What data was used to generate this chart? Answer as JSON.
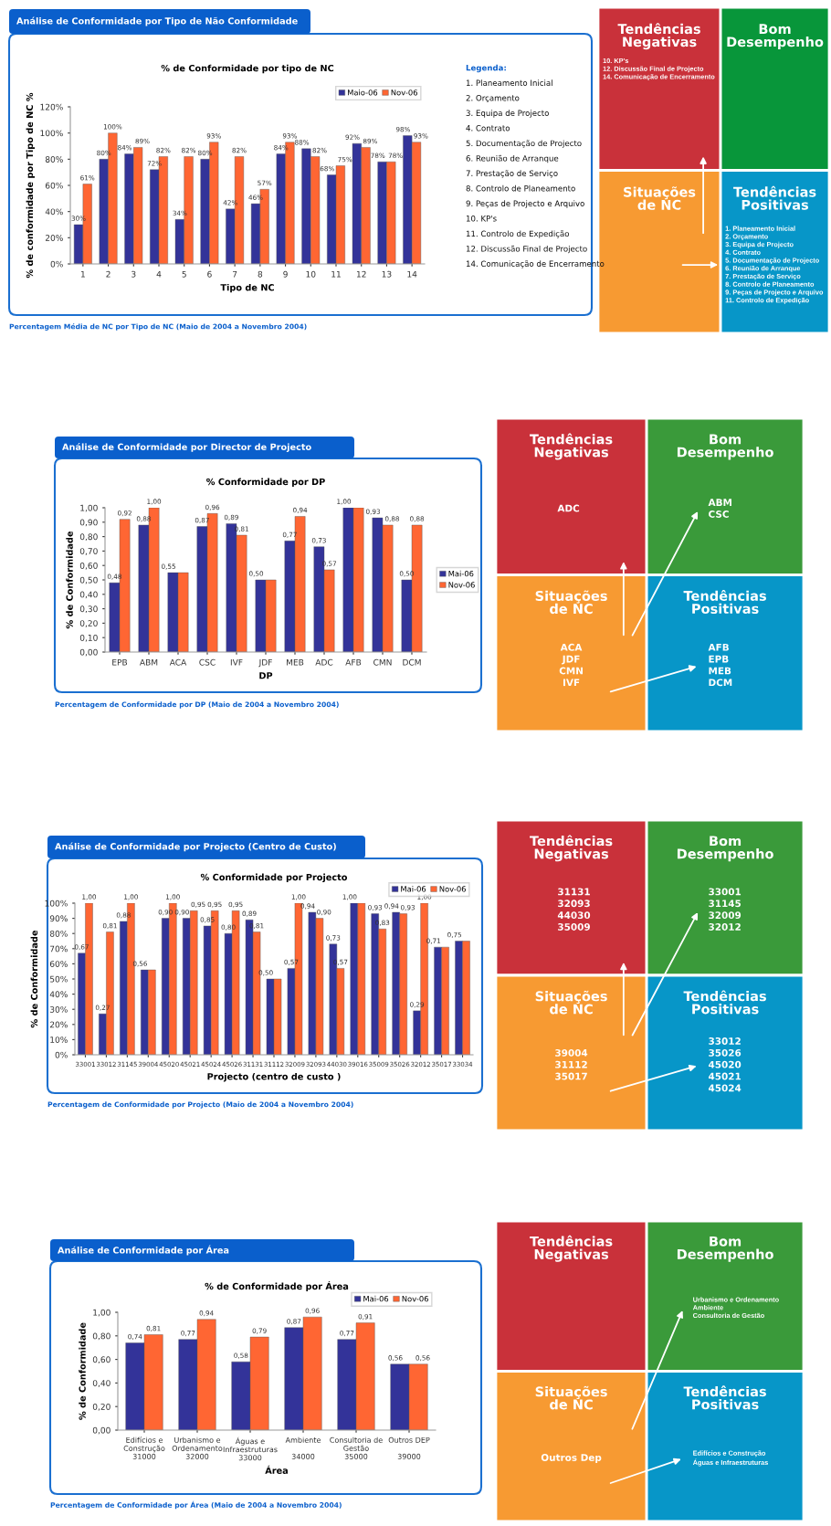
{
  "chart_data": [
    {
      "type": "bar",
      "title": "Análise de Conformidade por Tipo de Não Conformidade",
      "subtitle": "% de Conformidade por tipo de NC",
      "xlabel": "Tipo de NC",
      "ylabel": "% de conformidade por Tipo de NC %",
      "categories": [
        "1",
        "2",
        "3",
        "4",
        "5",
        "6",
        "7",
        "8",
        "9",
        "10",
        "11",
        "12",
        "13",
        "14"
      ],
      "series": [
        {
          "name": "Maio-06",
          "color": "#333399",
          "values": [
            30,
            80,
            84,
            72,
            34,
            80,
            42,
            46,
            84,
            88,
            68,
            92,
            78,
            98
          ],
          "value_labels": [
            "30%",
            "80%",
            "84%",
            "72%",
            "34%",
            "80%",
            "42%",
            "46%",
            "84%",
            "88%",
            "68%",
            "92%",
            "78%",
            "98%"
          ]
        },
        {
          "name": "Nov-06",
          "color": "#ff6633",
          "values": [
            61,
            100,
            89,
            82,
            82,
            93,
            82,
            57,
            93,
            82,
            75,
            89,
            78,
            93
          ],
          "value_labels": [
            "61%",
            "100%",
            "89%",
            "82%",
            "82%",
            "93%",
            "82%",
            "57%",
            "93%",
            "82%",
            "75%",
            "89%",
            "78%",
            "93%"
          ]
        }
      ],
      "ylim": [
        0,
        120
      ],
      "yticks": [
        {
          "value": 0,
          "label": "0%"
        },
        {
          "value": 20,
          "label": "20%"
        },
        {
          "value": 40,
          "label": "40%"
        },
        {
          "value": 60,
          "label": "60%"
        },
        {
          "value": 80,
          "label": "80%"
        },
        {
          "value": 100,
          "label": "100%"
        },
        {
          "value": 120,
          "label": "120%"
        }
      ],
      "legend": "top right",
      "grid": false,
      "annotations": [
        "Legenda:",
        "1. Planeamento Inicial",
        "2. Orçamento",
        "3. Equipa de Projecto",
        "4. Contrato",
        "5. Documentação de Projecto",
        "6. Reunião de Arranque",
        "7. Prestação de Serviço",
        "8. Controlo de Planeamento",
        "9. Peças de Projecto e Arquivo",
        "10. KP's",
        "11. Controlo de Expedição",
        "12. Discussão Final de Projecto",
        "14. Comunicação de Encerramento",
        "Percentagem Média de NC por Tipo de NC (Maio de 2004 a Novembro 2004)"
      ]
    },
    {
      "type": "other",
      "categories": [
        "Tendências Negativas",
        "Bom Desempenho",
        "Situações de NC",
        "Tendências Positivas"
      ],
      "colors": [
        "#c9313a",
        "#08963a",
        "#f79a32",
        "#0796c8"
      ],
      "annotations": [
        "10. KP's\n12. Discussão Final de Projecto\n14. Comunicação de Encerramento",
        null,
        null,
        "1. Planeamento Inicial\n2. Orçamento\n3. Equipa de Projecto\n4. Contrato\n5. Documentação de Projecto\n6. Reunião de Arranque\n7. Prestação de Serviço\n8. Controlo de Planeamento\n9. Peças de Projecto e Arquivo\n11. Controlo de Expedição"
      ]
    },
    {
      "type": "bar",
      "title": "Análise de Conformidade por Director de Projecto",
      "subtitle": "% Conformidade por DP",
      "xlabel": "DP",
      "ylabel": "% de Conformidade",
      "categories": [
        "EPB",
        "ABM",
        "ACA",
        "CSC",
        "IVF",
        "JDF",
        "MEB",
        "ADC",
        "AFB",
        "CMN",
        "DCM"
      ],
      "series": [
        {
          "name": "Mai-06",
          "color": "#333399",
          "values": [
            0.48,
            0.88,
            0.55,
            0.87,
            0.89,
            0.5,
            0.77,
            0.73,
            1.0,
            0.93,
            0.5
          ],
          "value_labels": [
            "0,48",
            "0,88",
            "0,55",
            "0,87",
            "0,89",
            "0,50",
            "0,77",
            "0,73",
            "1,00",
            "0,93",
            "0,50"
          ]
        },
        {
          "name": "Nov-06",
          "color": "#ff6633",
          "values": [
            0.92,
            1.0,
            0.55,
            0.96,
            0.81,
            0.5,
            0.94,
            0.57,
            1.0,
            0.88,
            0.88
          ],
          "value_labels": [
            "0,92",
            "1,00",
            null,
            "0,96",
            "0,81",
            null,
            "0,94",
            "0,57",
            null,
            "0,88",
            "0,88"
          ]
        }
      ],
      "ylim": [
        0,
        1
      ],
      "yticks": [
        {
          "value": 0,
          "label": "0,00"
        },
        {
          "value": 0.1,
          "label": "0,10"
        },
        {
          "value": 0.2,
          "label": "0,20"
        },
        {
          "value": 0.3,
          "label": "0,30"
        },
        {
          "value": 0.4,
          "label": "0,40"
        },
        {
          "value": 0.5,
          "label": "0,50"
        },
        {
          "value": 0.6,
          "label": "0,60"
        },
        {
          "value": 0.7,
          "label": "0,70"
        },
        {
          "value": 0.8,
          "label": "0,80"
        },
        {
          "value": 0.9,
          "label": "0,90"
        },
        {
          "value": 1,
          "label": "1,00"
        }
      ],
      "legend": "right",
      "grid": false,
      "annotations": [
        "Percentagem de Conformidade por DP (Maio de 2004 a Novembro 2004)"
      ]
    },
    {
      "type": "other",
      "categories": [
        "Tendências Negativas",
        "Bom Desempenho",
        "Situações de NC",
        "Tendências Positivas"
      ],
      "colors": [
        "#c9313a",
        "#3a9a3a",
        "#f79a32",
        "#0796c8"
      ],
      "annotations": [
        "ADC",
        "ABM\nCSC",
        "ACA\nJDF\nCMN\nIVF",
        "AFB\nEPB\nMEB\nDCM"
      ]
    },
    {
      "type": "bar",
      "title": "Análise de Conformidade por Projecto (Centro de Custo)",
      "subtitle": "% Conformidade por Projecto",
      "xlabel": "Projecto (centro de custo )",
      "ylabel": "% de Conformidade",
      "categories": [
        "33001",
        "33012",
        "31145",
        "39004",
        "45020",
        "45021",
        "45024",
        "45026",
        "31131",
        "31112",
        "32009",
        "32093",
        "44030",
        "39016",
        "35009",
        "35026",
        "32012",
        "35017",
        "33034"
      ],
      "series": [
        {
          "name": "Mai-06",
          "color": "#333399",
          "values": [
            0.67,
            0.27,
            0.88,
            0.56,
            0.9,
            0.9,
            0.85,
            0.8,
            0.89,
            0.5,
            0.57,
            0.94,
            0.73,
            1.0,
            0.93,
            0.94,
            0.29,
            0.71,
            0.75
          ],
          "value_labels": [
            "0,67",
            "0,27",
            "0,88",
            "0,56",
            "0,90",
            "0,90",
            "0,85",
            "0,80",
            "0,89",
            "0,50",
            "0,57",
            "0,94",
            "0,73",
            "1,00",
            "0,93",
            "0,94",
            "0,29",
            "0,71",
            "0,75"
          ]
        },
        {
          "name": "Nov-06",
          "color": "#ff6633",
          "values": [
            1.0,
            0.81,
            1.0,
            0.56,
            1.0,
            0.95,
            0.95,
            0.95,
            0.81,
            0.5,
            1.0,
            0.9,
            0.57,
            1.0,
            0.83,
            0.93,
            1.0,
            0.71,
            0.75
          ],
          "value_labels": [
            "1,00",
            "0,81",
            "1,00",
            null,
            "1,00",
            "0,95",
            "0,95",
            "0,95",
            "0,81",
            null,
            "1,00",
            "0,90",
            "0,57",
            null,
            "0,83",
            "0,93",
            "1,00",
            null,
            null
          ]
        }
      ],
      "ylim": [
        0,
        1
      ],
      "yticks": [
        {
          "value": 0,
          "label": "0%"
        },
        {
          "value": 0.1,
          "label": "10%"
        },
        {
          "value": 0.2,
          "label": "20%"
        },
        {
          "value": 0.3,
          "label": "30%"
        },
        {
          "value": 0.4,
          "label": "40%"
        },
        {
          "value": 0.5,
          "label": "50%"
        },
        {
          "value": 0.6,
          "label": "60%"
        },
        {
          "value": 0.7,
          "label": "70%"
        },
        {
          "value": 0.8,
          "label": "80%"
        },
        {
          "value": 0.9,
          "label": "90%"
        },
        {
          "value": 1,
          "label": "100%"
        }
      ],
      "legend": "top right",
      "grid": false,
      "annotations": [
        "Percentagem de Conformidade por Projecto (Maio de 2004 a Novembro 2004)"
      ]
    },
    {
      "type": "other",
      "categories": [
        "Tendências Negativas",
        "Bom Desempenho",
        "Situações de NC",
        "Tendências Positivas"
      ],
      "colors": [
        "#c9313a",
        "#3a9a3a",
        "#f79a32",
        "#0796c8"
      ],
      "annotations": [
        "31131\n32093\n44030\n35009",
        "33001\n31145\n32009\n32012",
        "39004\n31112\n35017",
        "33012\n35026\n45020\n45021\n45024"
      ]
    },
    {
      "type": "bar",
      "title": "Análise de Conformidade por Área",
      "subtitle": "% de Conformidade por Área",
      "xlabel": "Área",
      "ylabel": "% de Conformidade",
      "categories": [
        "Edifícios e\nConstrução\n31000",
        "Urbanismo e\nOrdenamento\n32000",
        "Águas e\nInfraestruturas\n33000",
        "Ambiente\n\n34000",
        "Consultoria de\nGestão\n35000",
        "Outros DEP\n\n39000"
      ],
      "series": [
        {
          "name": "Mai-06",
          "color": "#333399",
          "values": [
            0.74,
            0.77,
            0.58,
            0.87,
            0.77,
            0.56
          ],
          "value_labels": [
            "0,74",
            "0,77",
            "0,58",
            "0,87",
            "0,77",
            "0,56"
          ]
        },
        {
          "name": "Nov-06",
          "color": "#ff6633",
          "values": [
            0.81,
            0.94,
            0.79,
            0.96,
            0.91,
            0.56
          ],
          "value_labels": [
            "0,81",
            "0,94",
            "0,79",
            "0,96",
            "0,91",
            "0,56"
          ]
        }
      ],
      "ylim": [
        0,
        1
      ],
      "yticks": [
        {
          "value": 0,
          "label": "0,00"
        },
        {
          "value": 0.2,
          "label": "0,20"
        },
        {
          "value": 0.4,
          "label": "0,40"
        },
        {
          "value": 0.6,
          "label": "0,60"
        },
        {
          "value": 0.8,
          "label": "0,80"
        },
        {
          "value": 1,
          "label": "1,00"
        }
      ],
      "legend": "top right",
      "grid": false,
      "annotations": [
        "Percentagem de Conformidade por Área (Maio de 2004 a Novembro 2004)"
      ]
    },
    {
      "type": "other",
      "categories": [
        "Tendências Negativas",
        "Bom Desempenho",
        "Situações de NC",
        "Tendências Positivas"
      ],
      "colors": [
        "#c9313a",
        "#3a9a3a",
        "#f79a32",
        "#0796c8"
      ],
      "annotations": [
        null,
        "Urbanismo e Ordenamento\nAmbiente\nConsultoria de Gestão",
        "Outros Dep",
        "Edifícios e Construção\nÁguas e Infraestruturas"
      ]
    }
  ]
}
